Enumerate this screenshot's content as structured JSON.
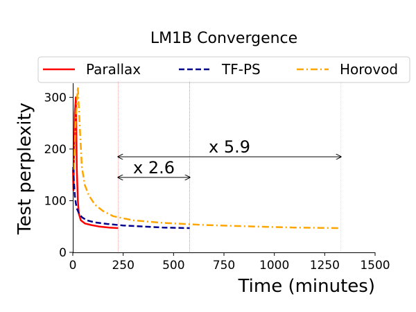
{
  "chart_data": {
    "type": "line",
    "title": "LM1B Convergence",
    "xlabel": "Time (minutes)",
    "ylabel": "Test perplexity",
    "xlim": [
      0,
      1500
    ],
    "ylim": [
      0,
      330
    ],
    "xticks": [
      0,
      250,
      500,
      750,
      1000,
      1250,
      1500
    ],
    "yticks": [
      0,
      100,
      200,
      300
    ],
    "grid": false,
    "legend_position": "top",
    "series": [
      {
        "name": "Parallax",
        "color": "#ff0000",
        "style": "solid",
        "x": [
          1,
          3,
          6,
          10,
          15,
          20,
          25,
          30,
          40,
          60,
          90,
          130,
          180,
          225
        ],
        "y": [
          160,
          120,
          180,
          270,
          300,
          160,
          100,
          75,
          62,
          56,
          53,
          50,
          48,
          47
        ]
      },
      {
        "name": "TF-PS",
        "color": "#00008b",
        "style": "dashed",
        "x": [
          2,
          5,
          10,
          15,
          20,
          30,
          45,
          70,
          110,
          170,
          250,
          350,
          450,
          580
        ],
        "y": [
          165,
          140,
          110,
          95,
          85,
          76,
          68,
          62,
          58,
          55,
          52,
          50,
          48,
          47
        ]
      },
      {
        "name": "Horovod",
        "color": "#ffa500",
        "style": "dashdot",
        "x": [
          5,
          15,
          25,
          35,
          45,
          60,
          80,
          110,
          150,
          200,
          300,
          450,
          650,
          900,
          1100,
          1330
        ],
        "y": [
          160,
          260,
          320,
          240,
          165,
          130,
          110,
          92,
          80,
          70,
          62,
          57,
          53,
          50,
          48,
          47
        ]
      }
    ],
    "vlines": [
      {
        "x": 225,
        "color": "#ff0000"
      },
      {
        "x": 580,
        "color": "#00008b"
      },
      {
        "x": 1330,
        "color": "#ffa500"
      }
    ],
    "annotations": [
      {
        "text": "x 2.6",
        "x_start": 225,
        "x_end": 580,
        "y": 145
      },
      {
        "text": "x 5.9",
        "x_start": 225,
        "x_end": 1330,
        "y": 185
      }
    ]
  }
}
